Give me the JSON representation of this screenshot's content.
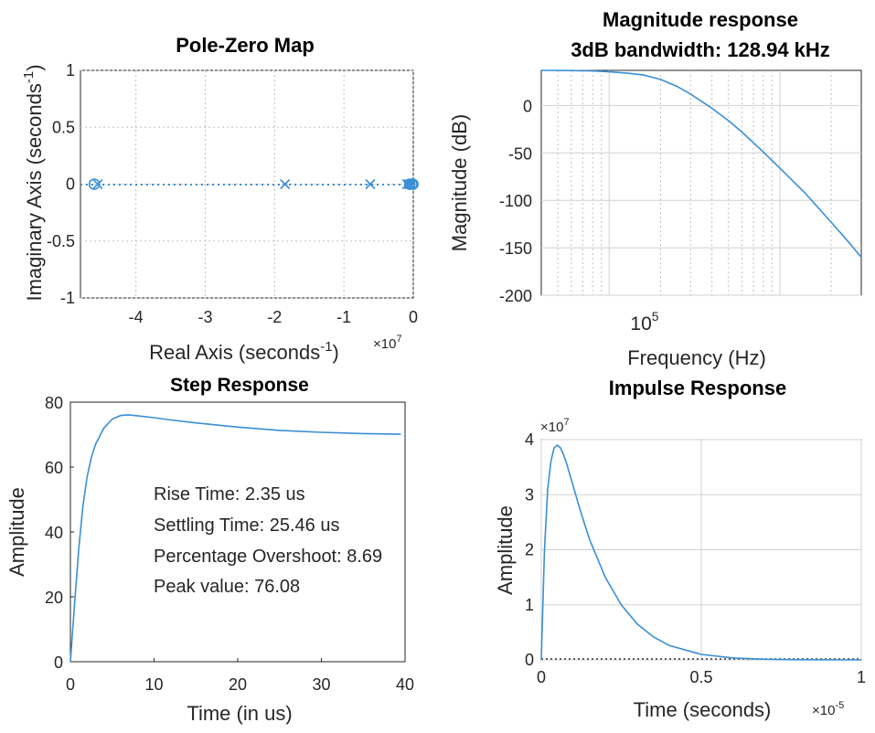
{
  "colors": {
    "line": "#3a8fd6",
    "axis": "#262626",
    "grid": "#d0d0d0"
  },
  "chart_data": [
    {
      "type": "scatter",
      "title": "Pole-Zero Map",
      "xlabel": "Real Axis (seconds",
      "xlabel_sup": "-1",
      "xlabel_close": ")",
      "ylabel": "Imaginary Axis (seconds",
      "ylabel_sup": "-1",
      "ylabel_close": ")",
      "x_exponent_base": "×10",
      "x_exponent_power": "7",
      "xlim": [
        -4.8,
        0
      ],
      "ylim": [
        -1,
        1
      ],
      "xticks": [
        "-4",
        "-3",
        "-2",
        "-1",
        "0"
      ],
      "yticks": [
        "1",
        "0.5",
        "0",
        "-0.5",
        "-1"
      ],
      "xtick_values": [
        -4,
        -3,
        -2,
        -1,
        0
      ],
      "ytick_values": [
        1,
        0.5,
        0,
        -0.5,
        -1
      ],
      "poles": [
        -4.55,
        -1.85,
        -0.62,
        -0.09,
        -0.06,
        -0.03
      ],
      "zeros": [
        -4.6,
        -0.05,
        -0.02,
        -0.005
      ],
      "grid": true
    },
    {
      "type": "line",
      "title_line1": "Magnitude response",
      "title_line2": "3dB bandwidth: 128.94 kHz",
      "xlabel": "Frequency  (Hz)",
      "ylabel": "Magnitude (dB)",
      "x_scale": "log",
      "xlim": [
        40000,
        3000000
      ],
      "ylim": [
        -200,
        37
      ],
      "xtick_base": "10",
      "xtick_power": "5",
      "yticks": [
        "0",
        "-50",
        "-100",
        "-150",
        "-200"
      ],
      "ytick_values": [
        0,
        -50,
        -100,
        -150,
        -200
      ],
      "x": [
        40000,
        60000,
        80000,
        100000,
        128940,
        160000,
        200000,
        250000,
        300000,
        400000,
        500000,
        600000,
        800000,
        1000000,
        1400000,
        2000000,
        2500000,
        3000000
      ],
      "y": [
        37,
        36.8,
        36.4,
        35.5,
        34,
        32,
        27.5,
        20,
        12,
        -3,
        -16,
        -28,
        -49,
        -66,
        -92,
        -123,
        -143,
        -160
      ],
      "grid": true
    },
    {
      "type": "line",
      "title": "Step Response",
      "xlabel": "Time (in us)",
      "ylabel": "Amplitude",
      "xlim": [
        0,
        40
      ],
      "ylim": [
        0,
        80
      ],
      "xticks": [
        "0",
        "10",
        "20",
        "30",
        "40"
      ],
      "yticks": [
        "80",
        "60",
        "40",
        "20",
        "0"
      ],
      "xtick_values": [
        0,
        10,
        20,
        30,
        40
      ],
      "ytick_values": [
        80,
        60,
        40,
        20,
        0
      ],
      "x": [
        0,
        0.5,
        1,
        1.5,
        2,
        2.5,
        3,
        4,
        5,
        6,
        7,
        8,
        10,
        12,
        15,
        20,
        25,
        30,
        35,
        39.5
      ],
      "y": [
        0,
        18,
        35,
        48,
        57,
        63,
        67,
        72,
        74.8,
        75.9,
        76.08,
        75.8,
        75.2,
        74.5,
        73.6,
        72.3,
        71.3,
        70.7,
        70.3,
        70.1
      ],
      "annotations": [
        "Rise Time: 2.35 us",
        "Settling Time: 25.46 us",
        "Percentage Overshoot: 8.69",
        "Peak value: 76.08"
      ],
      "grid": false
    },
    {
      "type": "line",
      "title": "Impulse Response",
      "xlabel": "Time (seconds)",
      "ylabel": "Amplitude",
      "y_exponent_base": "×10",
      "y_exponent_power": "7",
      "x_exponent_base": "×10",
      "x_exponent_power": "-5",
      "xlim": [
        0,
        1
      ],
      "ylim": [
        0,
        4
      ],
      "xticks": [
        "0",
        "0.5",
        "1"
      ],
      "yticks": [
        "4",
        "3",
        "2",
        "1",
        "0"
      ],
      "xtick_values": [
        0,
        0.5,
        1
      ],
      "ytick_values": [
        4,
        3,
        2,
        1,
        0
      ],
      "x": [
        0,
        0.01,
        0.02,
        0.03,
        0.04,
        0.05,
        0.06,
        0.07,
        0.08,
        0.1,
        0.12,
        0.15,
        0.2,
        0.25,
        0.3,
        0.35,
        0.4,
        0.5,
        0.6,
        0.7,
        0.8,
        1.0
      ],
      "y": [
        0,
        2.0,
        3.1,
        3.6,
        3.85,
        3.9,
        3.85,
        3.72,
        3.55,
        3.15,
        2.75,
        2.2,
        1.5,
        1.0,
        0.65,
        0.42,
        0.26,
        0.1,
        0.035,
        0.012,
        0.004,
        0
      ],
      "grid": true
    }
  ]
}
